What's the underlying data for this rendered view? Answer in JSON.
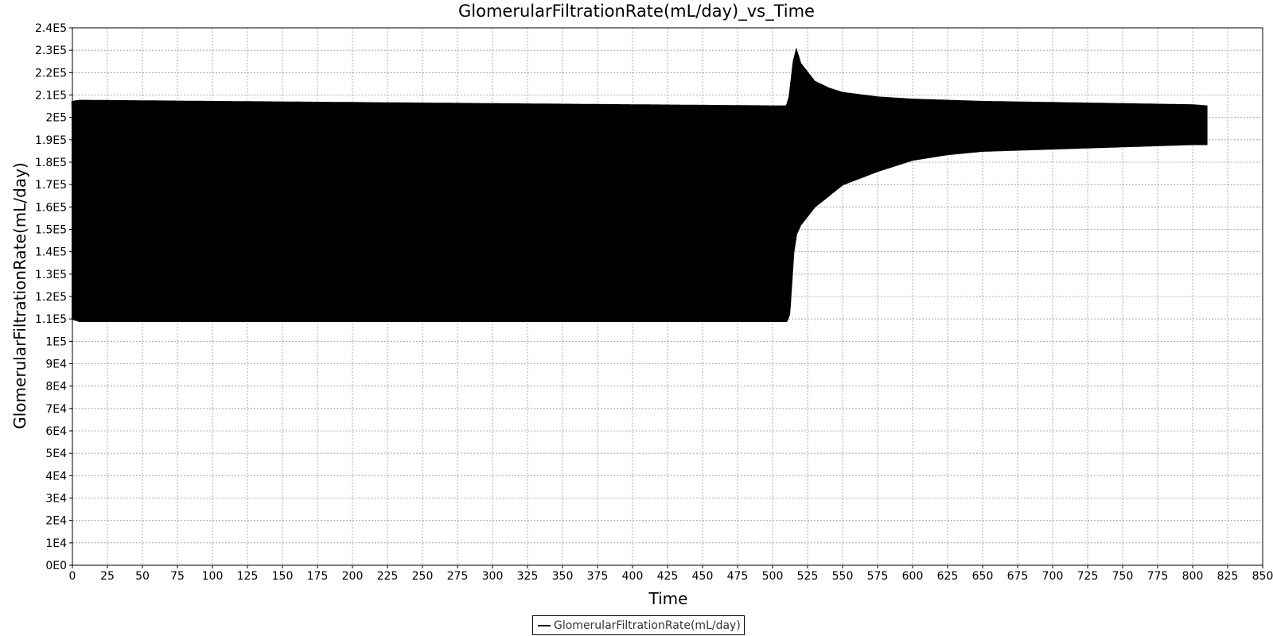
{
  "chart_data": {
    "type": "line",
    "title": "GlomerularFiltrationRate(mL/day)_vs_Time",
    "xlabel": "Time",
    "ylabel": "GlomerularFiltrationRate(mL/day)",
    "xlim": [
      0,
      850
    ],
    "ylim": [
      0,
      240000
    ],
    "x_ticks": [
      "0",
      "25",
      "50",
      "75",
      "100",
      "125",
      "150",
      "175",
      "200",
      "225",
      "250",
      "275",
      "300",
      "325",
      "350",
      "375",
      "400",
      "425",
      "450",
      "475",
      "500",
      "525",
      "550",
      "575",
      "600",
      "625",
      "650",
      "675",
      "700",
      "725",
      "750",
      "775",
      "800",
      "825",
      "850"
    ],
    "y_ticks": [
      "0E0",
      "1E4",
      "2E4",
      "3E4",
      "4E4",
      "5E4",
      "6E4",
      "7E4",
      "8E4",
      "9E4",
      "1E5",
      "1.1E5",
      "1.2E5",
      "1.3E5",
      "1.4E5",
      "1.5E5",
      "1.6E5",
      "1.7E5",
      "1.8E5",
      "1.9E5",
      "2E5",
      "2.1E5",
      "2.2E5",
      "2.3E5",
      "2.4E5"
    ],
    "grid": true,
    "legend_position": "bottom-center",
    "series": [
      {
        "name": "GlomerularFiltrationRate(mL/day)",
        "color": "#000000",
        "envelope": {
          "x": [
            0,
            5,
            100,
            300,
            500,
            510,
            512,
            515,
            517,
            520,
            525,
            530,
            540,
            550,
            575,
            600,
            625,
            650,
            700,
            750,
            800,
            810
          ],
          "upper": [
            207000,
            207500,
            207000,
            206000,
            205000,
            205000,
            209000,
            225000,
            230000,
            224000,
            220000,
            216000,
            213000,
            211000,
            209000,
            208000,
            207500,
            207000,
            206500,
            206000,
            205500,
            205000
          ],
          "lower": [
            110000,
            109000,
            109000,
            109000,
            109000,
            109000,
            112000,
            140000,
            148000,
            152000,
            156000,
            160000,
            165000,
            170000,
            176000,
            181000,
            183500,
            185000,
            186000,
            187000,
            188000,
            188000
          ]
        }
      }
    ]
  }
}
